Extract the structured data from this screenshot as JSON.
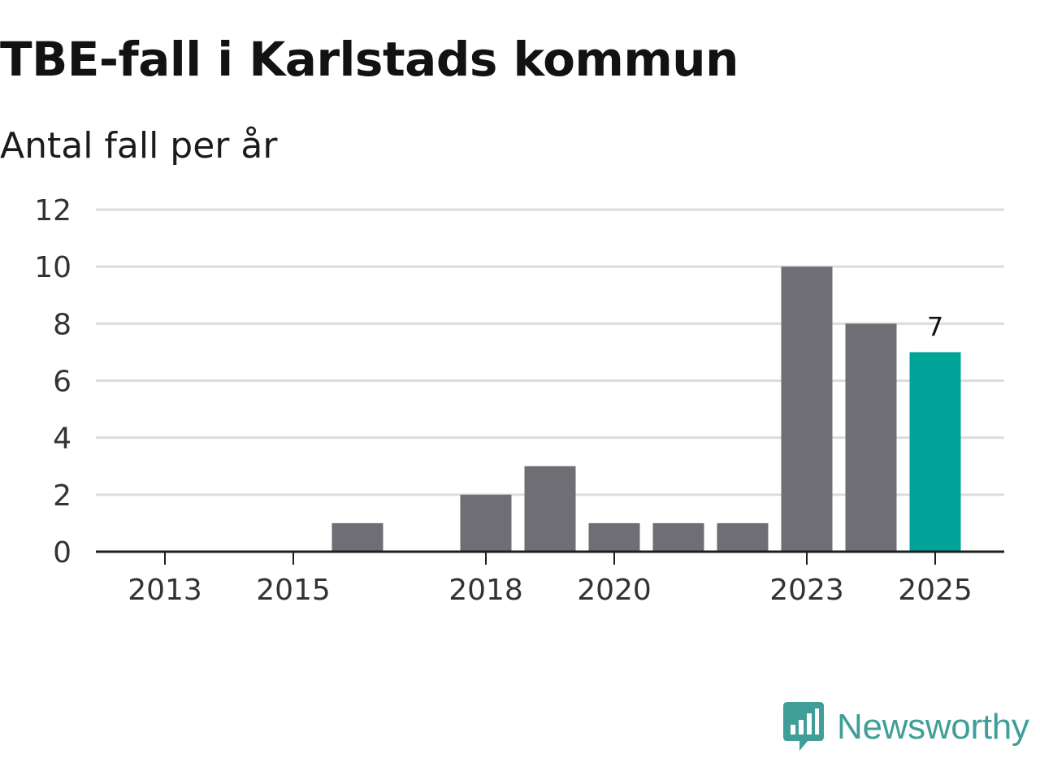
{
  "title": "TBE-fall i Karlstads kommun",
  "subtitle": "Antal fall per år",
  "brand": {
    "name": "Newsworthy",
    "icon": "newsworthy-logo-icon"
  },
  "colors": {
    "bar": "#6f6e74",
    "highlight": "#00a398",
    "grid": "#dcdcdc",
    "axis": "#1e1e1e",
    "tick_text": "#333333",
    "brand": "#3f9e98"
  },
  "chart_data": {
    "type": "bar",
    "title": "TBE-fall i Karlstads kommun",
    "subtitle": "Antal fall per år",
    "xlabel": "",
    "ylabel": "",
    "ylim": [
      0,
      12
    ],
    "yticks": [
      0,
      2,
      4,
      6,
      8,
      10,
      12
    ],
    "grid": true,
    "categories": [
      2013,
      2014,
      2015,
      2016,
      2017,
      2018,
      2019,
      2020,
      2021,
      2022,
      2023,
      2024,
      2025
    ],
    "values": [
      0,
      0,
      0,
      1,
      0,
      2,
      3,
      1,
      1,
      1,
      10,
      8,
      7
    ],
    "xtick_labels": [
      "2013",
      "2015",
      "2018",
      "2020",
      "2023",
      "2025"
    ],
    "highlight_category": 2025,
    "annotations": [
      {
        "category": 2025,
        "text": "7"
      }
    ]
  }
}
